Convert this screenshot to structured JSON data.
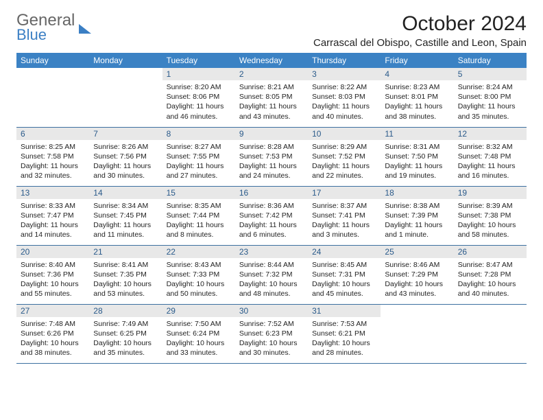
{
  "brand": {
    "line1": "General",
    "line2": "Blue"
  },
  "title": "October 2024",
  "location": "Carrascal del Obispo, Castille and Leon, Spain",
  "colors": {
    "header_bg": "#3b82c4",
    "header_text": "#ffffff",
    "daynum_bg": "#e8e8e8",
    "daynum_text": "#2a5a8a",
    "row_border": "#3b6fa0",
    "body_text": "#222222",
    "brand_blue": "#3b7fc4"
  },
  "weekdays": [
    "Sunday",
    "Monday",
    "Tuesday",
    "Wednesday",
    "Thursday",
    "Friday",
    "Saturday"
  ],
  "weeks": [
    [
      {
        "empty": true
      },
      {
        "empty": true
      },
      {
        "n": "1",
        "sr": "8:20 AM",
        "ss": "8:06 PM",
        "dl": "11 hours and 46 minutes."
      },
      {
        "n": "2",
        "sr": "8:21 AM",
        "ss": "8:05 PM",
        "dl": "11 hours and 43 minutes."
      },
      {
        "n": "3",
        "sr": "8:22 AM",
        "ss": "8:03 PM",
        "dl": "11 hours and 40 minutes."
      },
      {
        "n": "4",
        "sr": "8:23 AM",
        "ss": "8:01 PM",
        "dl": "11 hours and 38 minutes."
      },
      {
        "n": "5",
        "sr": "8:24 AM",
        "ss": "8:00 PM",
        "dl": "11 hours and 35 minutes."
      }
    ],
    [
      {
        "n": "6",
        "sr": "8:25 AM",
        "ss": "7:58 PM",
        "dl": "11 hours and 32 minutes."
      },
      {
        "n": "7",
        "sr": "8:26 AM",
        "ss": "7:56 PM",
        "dl": "11 hours and 30 minutes."
      },
      {
        "n": "8",
        "sr": "8:27 AM",
        "ss": "7:55 PM",
        "dl": "11 hours and 27 minutes."
      },
      {
        "n": "9",
        "sr": "8:28 AM",
        "ss": "7:53 PM",
        "dl": "11 hours and 24 minutes."
      },
      {
        "n": "10",
        "sr": "8:29 AM",
        "ss": "7:52 PM",
        "dl": "11 hours and 22 minutes."
      },
      {
        "n": "11",
        "sr": "8:31 AM",
        "ss": "7:50 PM",
        "dl": "11 hours and 19 minutes."
      },
      {
        "n": "12",
        "sr": "8:32 AM",
        "ss": "7:48 PM",
        "dl": "11 hours and 16 minutes."
      }
    ],
    [
      {
        "n": "13",
        "sr": "8:33 AM",
        "ss": "7:47 PM",
        "dl": "11 hours and 14 minutes."
      },
      {
        "n": "14",
        "sr": "8:34 AM",
        "ss": "7:45 PM",
        "dl": "11 hours and 11 minutes."
      },
      {
        "n": "15",
        "sr": "8:35 AM",
        "ss": "7:44 PM",
        "dl": "11 hours and 8 minutes."
      },
      {
        "n": "16",
        "sr": "8:36 AM",
        "ss": "7:42 PM",
        "dl": "11 hours and 6 minutes."
      },
      {
        "n": "17",
        "sr": "8:37 AM",
        "ss": "7:41 PM",
        "dl": "11 hours and 3 minutes."
      },
      {
        "n": "18",
        "sr": "8:38 AM",
        "ss": "7:39 PM",
        "dl": "11 hours and 1 minute."
      },
      {
        "n": "19",
        "sr": "8:39 AM",
        "ss": "7:38 PM",
        "dl": "10 hours and 58 minutes."
      }
    ],
    [
      {
        "n": "20",
        "sr": "8:40 AM",
        "ss": "7:36 PM",
        "dl": "10 hours and 55 minutes."
      },
      {
        "n": "21",
        "sr": "8:41 AM",
        "ss": "7:35 PM",
        "dl": "10 hours and 53 minutes."
      },
      {
        "n": "22",
        "sr": "8:43 AM",
        "ss": "7:33 PM",
        "dl": "10 hours and 50 minutes."
      },
      {
        "n": "23",
        "sr": "8:44 AM",
        "ss": "7:32 PM",
        "dl": "10 hours and 48 minutes."
      },
      {
        "n": "24",
        "sr": "8:45 AM",
        "ss": "7:31 PM",
        "dl": "10 hours and 45 minutes."
      },
      {
        "n": "25",
        "sr": "8:46 AM",
        "ss": "7:29 PM",
        "dl": "10 hours and 43 minutes."
      },
      {
        "n": "26",
        "sr": "8:47 AM",
        "ss": "7:28 PM",
        "dl": "10 hours and 40 minutes."
      }
    ],
    [
      {
        "n": "27",
        "sr": "7:48 AM",
        "ss": "6:26 PM",
        "dl": "10 hours and 38 minutes."
      },
      {
        "n": "28",
        "sr": "7:49 AM",
        "ss": "6:25 PM",
        "dl": "10 hours and 35 minutes."
      },
      {
        "n": "29",
        "sr": "7:50 AM",
        "ss": "6:24 PM",
        "dl": "10 hours and 33 minutes."
      },
      {
        "n": "30",
        "sr": "7:52 AM",
        "ss": "6:23 PM",
        "dl": "10 hours and 30 minutes."
      },
      {
        "n": "31",
        "sr": "7:53 AM",
        "ss": "6:21 PM",
        "dl": "10 hours and 28 minutes."
      },
      {
        "empty": true
      },
      {
        "empty": true
      }
    ]
  ],
  "labels": {
    "sunrise": "Sunrise:",
    "sunset": "Sunset:",
    "daylight": "Daylight:"
  }
}
